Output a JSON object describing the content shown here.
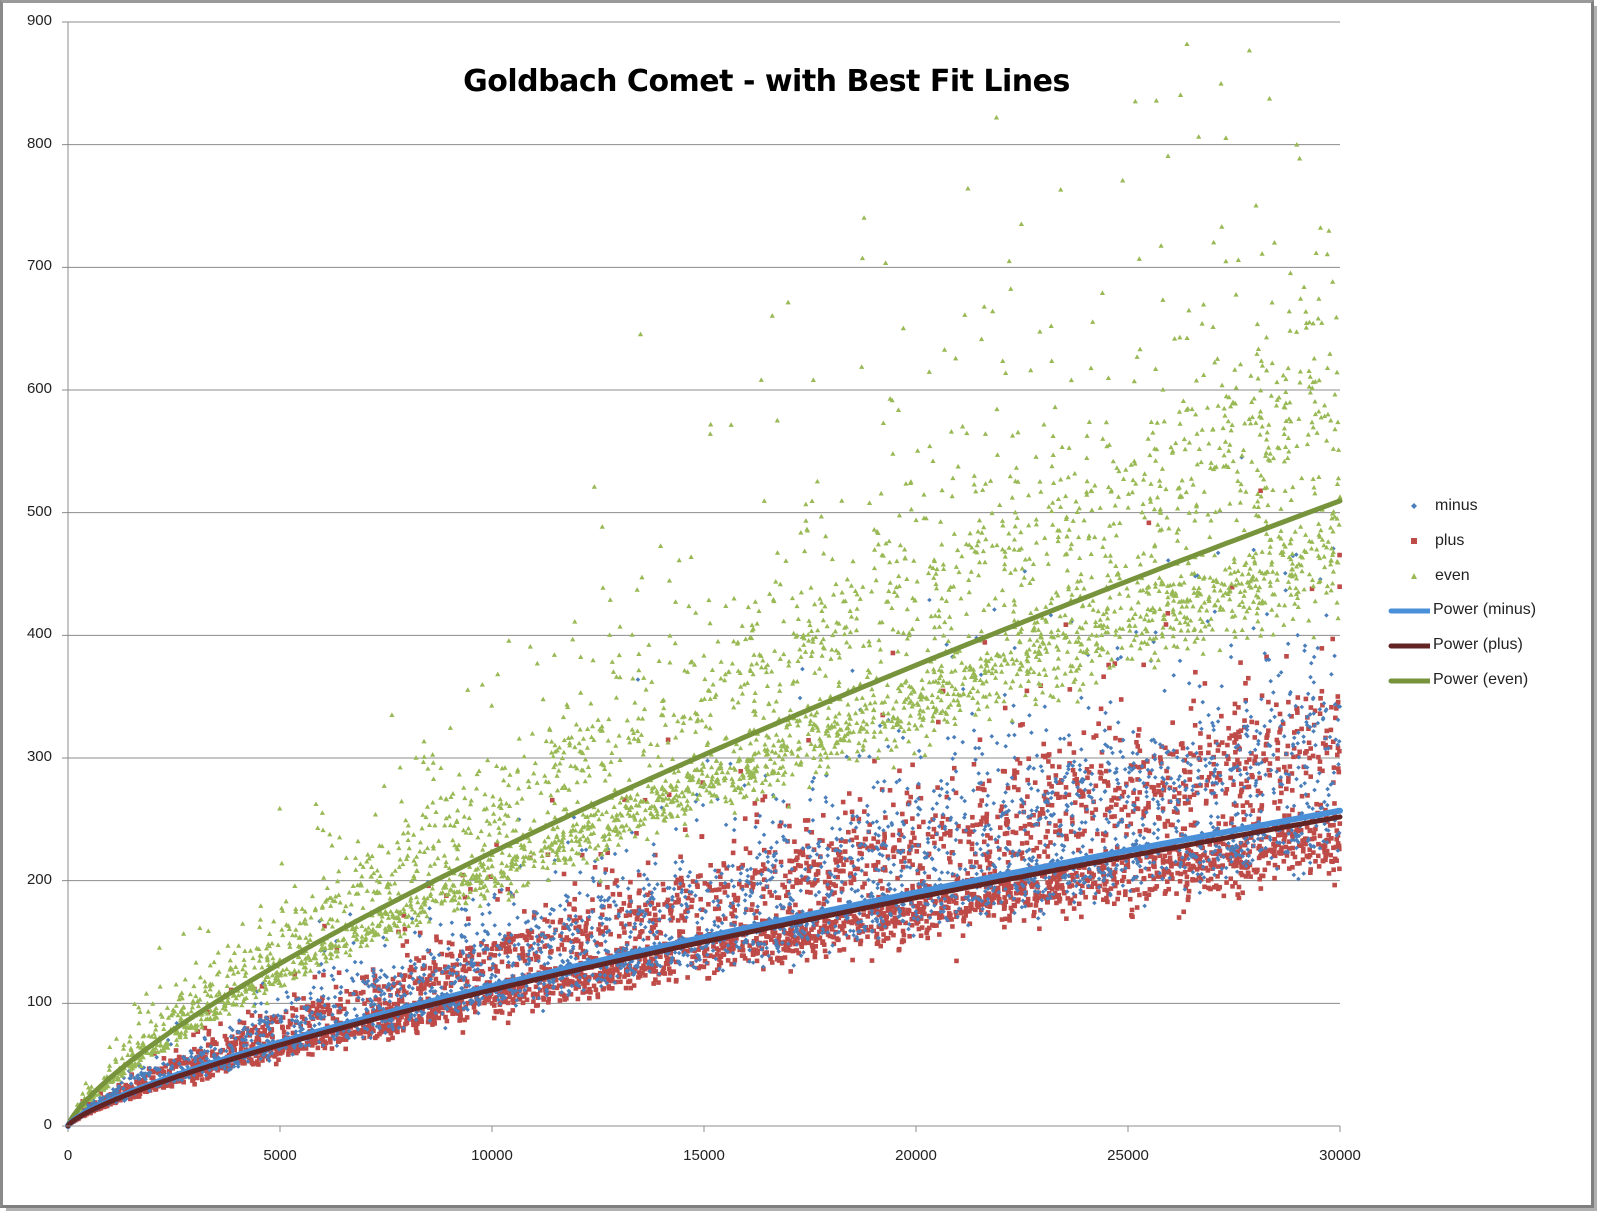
{
  "chart_data": {
    "type": "scatter",
    "title": "Goldbach Comet - with Best Fit Lines",
    "xlabel": "",
    "ylabel": "",
    "xlim": [
      0,
      30000
    ],
    "ylim": [
      0,
      900
    ],
    "grid": {
      "horizontal": true,
      "vertical": false
    },
    "legend_position": "right",
    "x_ticks": [
      "0",
      "5000",
      "10000",
      "15000",
      "20000",
      "25000",
      "30000"
    ],
    "y_ticks": [
      "0",
      "100",
      "200",
      "300",
      "400",
      "500",
      "600",
      "700",
      "800",
      "900"
    ],
    "series": [
      {
        "name": "minus",
        "kind": "scatter",
        "marker": "diamond",
        "color": "#4a7ebb",
        "approx_center_at": {
          "5000": 60,
          "10000": 113,
          "15000": 155,
          "20000": 195,
          "25000": 228,
          "30000": 255
        },
        "approx_range_at_30000": [
          210,
          390
        ]
      },
      {
        "name": "plus",
        "kind": "scatter",
        "marker": "square",
        "color": "#be4b48",
        "approx_center_at": {
          "5000": 58,
          "10000": 110,
          "15000": 150,
          "20000": 190,
          "25000": 222,
          "30000": 250
        },
        "approx_range_at_30000": [
          210,
          390
        ]
      },
      {
        "name": "even",
        "kind": "scatter",
        "marker": "triangle",
        "color": "#98b954",
        "approx_center_at": {
          "5000": 130,
          "10000": 222,
          "15000": 300,
          "20000": 370,
          "25000": 440,
          "30000": 507
        },
        "approx_range_at_30000": [
          430,
          770
        ]
      },
      {
        "name": "Power (minus)",
        "kind": "trendline",
        "color": "#4a90d9",
        "fit": "power",
        "a": 0.125,
        "b": 0.74,
        "values_at": {
          "0": 0,
          "5000": 69,
          "10000": 113,
          "15000": 153,
          "20000": 189,
          "25000": 223,
          "30000": 255
        }
      },
      {
        "name": "Power (plus)",
        "kind": "trendline",
        "color": "#632523",
        "fit": "power",
        "a": 0.114,
        "b": 0.747,
        "values_at": {
          "0": 0,
          "5000": 67,
          "10000": 110,
          "15000": 149,
          "20000": 185,
          "25000": 218,
          "30000": 250
        }
      },
      {
        "name": "Power (even)",
        "kind": "trendline",
        "color": "#77933c",
        "fit": "power",
        "a": 0.219,
        "b": 0.752,
        "values_at": {
          "0": 0,
          "5000": 133,
          "10000": 222,
          "15000": 302,
          "20000": 375,
          "25000": 443,
          "30000": 507
        }
      }
    ]
  },
  "legend": {
    "items": [
      "minus",
      "plus",
      "even",
      "Power (minus)",
      "Power (plus)",
      "Power (even)"
    ]
  }
}
